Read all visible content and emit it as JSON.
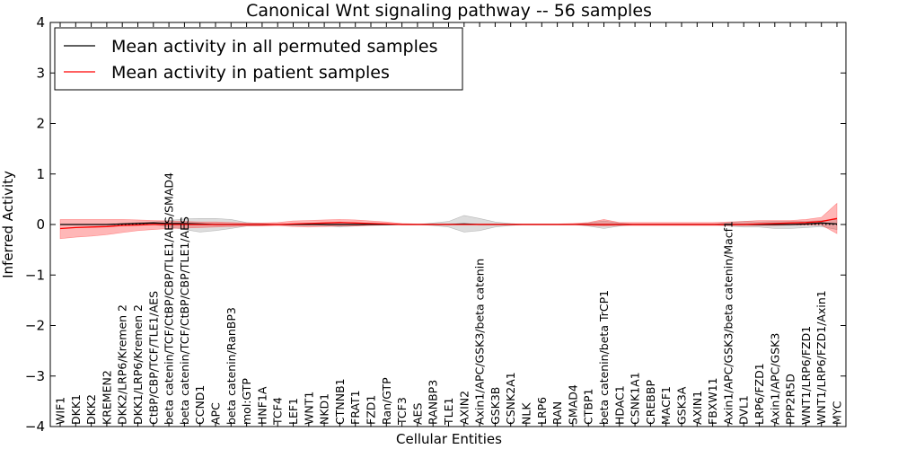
{
  "chart_data": {
    "type": "line",
    "title": "Canonical Wnt signaling pathway -- 56 samples",
    "xlabel": "Cellular Entities",
    "ylabel": "Inferred Activity",
    "ylim": [
      -4,
      4
    ],
    "yticks": [
      "−4",
      "−3",
      "−2",
      "−1",
      "0",
      "1",
      "2",
      "3",
      "4"
    ],
    "ytick_values": [
      -4,
      -3,
      -2,
      -1,
      0,
      1,
      2,
      3,
      4
    ],
    "legend_position": "top-left",
    "categories": [
      "WIF1",
      "DKK1",
      "DKK2",
      "KREMEN2",
      "DKK2/LRP6/Kremen 2",
      "DKK1/LRP6/Kremen 2",
      "CtBP/CBP/TCF/TLE1/AES",
      "beta catenin/TCF/CtBP/CBP/TLE1/AES/SMAD4",
      "beta catenin/TCF/CtBP/CBP/TLE1/AES",
      "CCND1",
      "APC",
      "beta catenin/RanBP3",
      "mol:GTP",
      "HNF1A",
      "TCF4",
      "LEF1",
      "WNT1",
      "NKD1",
      "CTNNB1",
      "FRAT1",
      "FZD1",
      "Ran/GTP",
      "TCF3",
      "AES",
      "RANBP3",
      "TLE1",
      "AXIN2",
      "Axin1/APC/GSK3/beta catenin",
      "GSK3B",
      "CSNK2A1",
      "NLK",
      "LRP6",
      "RAN",
      "SMAD4",
      "CTBP1",
      "beta catenin/beta TrCP1",
      "HDAC1",
      "CSNK1A1",
      "CREBBP",
      "MACF1",
      "GSK3A",
      "AXIN1",
      "FBXW11",
      "Axin1/APC/GSK3/beta catenin/Macf1",
      "DVL1",
      "LRP6/FZD1",
      "Axin1/APC/GSK3",
      "PPP2R5D",
      "WNT1/LRP6/FZD1",
      "WNT1/LRP6/FZD1/Axin1",
      "MYC"
    ],
    "series": [
      {
        "name": "Mean activity in all permuted samples",
        "color": "#000000",
        "values": [
          0,
          0,
          0,
          0,
          0.01,
          0.02,
          0.03,
          0.02,
          0.02,
          0.01,
          0,
          0,
          0,
          0,
          0,
          0,
          0,
          0,
          0,
          0,
          0,
          0,
          0,
          0,
          0,
          0,
          0.01,
          0,
          0,
          0,
          0,
          0,
          0,
          0,
          0,
          0,
          0,
          0,
          0,
          0,
          0,
          0,
          0,
          0,
          0,
          0,
          0,
          0,
          0.01,
          0.03,
          0.01
        ],
        "lower": [
          0,
          0,
          0,
          0,
          0,
          0,
          0,
          -0.05,
          -0.1,
          -0.15,
          -0.12,
          -0.08,
          -0.03,
          -0.02,
          0,
          0,
          0,
          -0.02,
          -0.05,
          -0.03,
          0,
          0,
          0,
          0,
          -0.02,
          -0.05,
          -0.15,
          -0.12,
          -0.05,
          -0.02,
          0,
          0,
          0,
          0,
          -0.03,
          -0.08,
          -0.03,
          0,
          0,
          0,
          0,
          0,
          0,
          -0.03,
          -0.05,
          -0.05,
          -0.08,
          -0.08,
          -0.06,
          -0.04,
          -0.1
        ],
        "upper": [
          0,
          0,
          0,
          0,
          0.02,
          0.04,
          0.05,
          0.08,
          0.11,
          0.12,
          0.12,
          0.1,
          0.04,
          0.02,
          0,
          0,
          0,
          0.02,
          0.05,
          0.03,
          0,
          0,
          0,
          0,
          0.03,
          0.06,
          0.18,
          0.12,
          0.05,
          0.02,
          0,
          0,
          0,
          0,
          0.03,
          0.07,
          0.03,
          0,
          0,
          0,
          0,
          0,
          0,
          0.04,
          0.06,
          0.05,
          0.06,
          0.06,
          0.06,
          0.08,
          0.1
        ]
      },
      {
        "name": "Mean activity in patient samples",
        "color": "#ff0000",
        "values": [
          -0.08,
          -0.06,
          -0.05,
          -0.04,
          -0.02,
          -0.01,
          0,
          0,
          0,
          0,
          0,
          0,
          0,
          0,
          0,
          0.01,
          0.02,
          0.03,
          0.04,
          0.03,
          0.02,
          0.01,
          0,
          0,
          0,
          0,
          0,
          0,
          0,
          0,
          0,
          0,
          0,
          0,
          0,
          0,
          0,
          0,
          0,
          0,
          0,
          0,
          0,
          0,
          0,
          0.01,
          0.02,
          0.03,
          0.04,
          0.06,
          0.12
        ],
        "lower": [
          -0.28,
          -0.25,
          -0.23,
          -0.2,
          -0.16,
          -0.12,
          -0.1,
          -0.08,
          -0.07,
          -0.06,
          -0.05,
          -0.04,
          -0.03,
          -0.03,
          -0.02,
          -0.04,
          -0.05,
          -0.04,
          -0.03,
          -0.03,
          -0.02,
          -0.01,
          0,
          0,
          0,
          0,
          0,
          0,
          0,
          0,
          0,
          0,
          0,
          0,
          -0.02,
          -0.03,
          -0.02,
          -0.02,
          -0.02,
          -0.02,
          -0.02,
          -0.02,
          -0.02,
          -0.02,
          -0.02,
          -0.02,
          -0.02,
          -0.01,
          -0.01,
          -0.01,
          -0.18
        ],
        "upper": [
          0.1,
          0.1,
          0.1,
          0.1,
          0.1,
          0.09,
          0.08,
          0.07,
          0.06,
          0.05,
          0.05,
          0.04,
          0.03,
          0.03,
          0.04,
          0.07,
          0.08,
          0.09,
          0.1,
          0.09,
          0.07,
          0.05,
          0.02,
          0.01,
          0.01,
          0.01,
          0.01,
          0.01,
          0.01,
          0.01,
          0.01,
          0.01,
          0.01,
          0.02,
          0.04,
          0.1,
          0.04,
          0.04,
          0.04,
          0.04,
          0.04,
          0.04,
          0.04,
          0.05,
          0.06,
          0.08,
          0.08,
          0.08,
          0.1,
          0.14,
          0.42
        ]
      }
    ],
    "baseline_style": "dotted zero line"
  }
}
